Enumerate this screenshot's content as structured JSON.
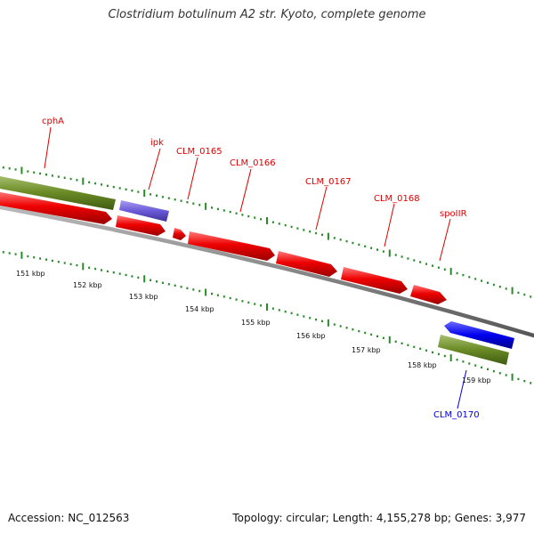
{
  "title": "Clostridium botulinum A2 str. Kyoto, complete genome",
  "footer": {
    "accession": "Accession: NC_012563",
    "topology": "Topology: circular; Length: 4,155,278 bp; Genes: 3,977"
  },
  "colors": {
    "cds": "#ee0000",
    "trna": "#6655dd",
    "cds_reverse": "#0000ee",
    "gene": "#6a8a25",
    "backbone": "#888888",
    "tick": "#2a8a2a",
    "label_red": "#dd0000",
    "label_blue": "#0000dd"
  },
  "genes": [
    {
      "label": "cphA"
    },
    {
      "label": "ipk"
    },
    {
      "label": "CLM_0165"
    },
    {
      "label": "CLM_0166"
    },
    {
      "label": "CLM_0167"
    },
    {
      "label": "CLM_0168"
    },
    {
      "label": "spoIIR"
    },
    {
      "label": "CLM_0170"
    }
  ],
  "kbp_ticks": [
    {
      "label": "151 kbp"
    },
    {
      "label": "152 kbp"
    },
    {
      "label": "153 kbp"
    },
    {
      "label": "154 kbp"
    },
    {
      "label": "155 kbp"
    },
    {
      "label": "156 kbp"
    },
    {
      "label": "157 kbp"
    },
    {
      "label": "158 kbp"
    },
    {
      "label": "159 kbp"
    }
  ]
}
